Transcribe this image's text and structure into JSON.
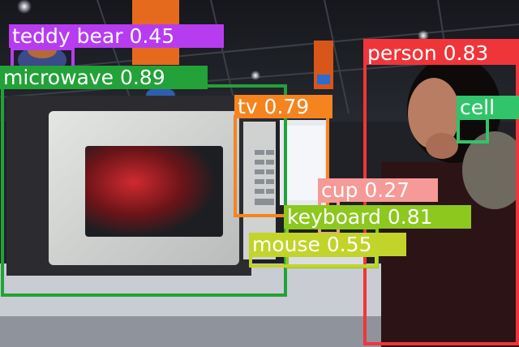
{
  "image": {
    "description_role": "photograph with object-detection overlay",
    "detections": [
      {
        "id": "teddy-bear",
        "label": "teddy bear 0.45",
        "color": "#b73cf0"
      },
      {
        "id": "microwave",
        "label": "microwave 0.89",
        "color": "#22a238"
      },
      {
        "id": "tv",
        "label": "tv 0.79",
        "color": "#f5841f"
      },
      {
        "id": "person",
        "label": "person 0.83",
        "color": "#f0353a"
      },
      {
        "id": "cell",
        "label": "cell",
        "color": "#31c46a"
      },
      {
        "id": "cup",
        "label": "cup 0.27",
        "color": "#f59a96"
      },
      {
        "id": "keyboard",
        "label": "keyboard 0.81",
        "color": "#8cc81e"
      },
      {
        "id": "mouse",
        "label": "mouse 0.55",
        "color": "#c2d42a"
      }
    ],
    "palette": {
      "microwave_body": "#2c2c30",
      "microwave_door": "#d6d8d6",
      "microwave_window": "#1c1e22",
      "window_glow": "#b0242a",
      "ceiling": "#1a1c22",
      "table": "#cfd3d8",
      "jacket": "#2c1416",
      "skin": "#b87d62"
    }
  }
}
